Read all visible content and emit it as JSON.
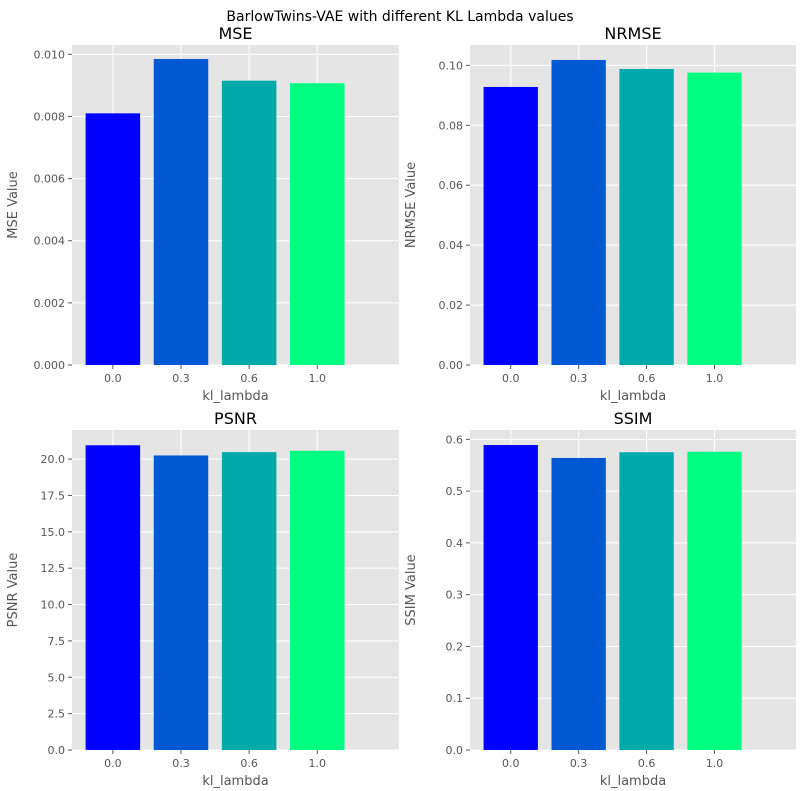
{
  "figure_title": "BarlowTwins-VAE with different KL Lambda values",
  "chart_data": [
    {
      "type": "bar",
      "title": "MSE",
      "xlabel": "kl_lambda",
      "ylabel": "MSE Value",
      "categories": [
        "0.0",
        "0.3",
        "0.6",
        "1.0"
      ],
      "values": [
        0.0081,
        0.00985,
        0.00915,
        0.00907
      ],
      "colors": [
        "#0000ff",
        "#0058d4",
        "#00a9aa",
        "#00ff80"
      ],
      "ylim": [
        0,
        0.0103
      ],
      "yticks": [
        0.0,
        0.002,
        0.004,
        0.006,
        0.008,
        0.01
      ],
      "ytick_labels": [
        "0.000",
        "0.002",
        "0.004",
        "0.006",
        "0.008",
        "0.010"
      ],
      "grid": true
    },
    {
      "type": "bar",
      "title": "NRMSE",
      "xlabel": "kl_lambda",
      "ylabel": "NRMSE Value",
      "categories": [
        "0.0",
        "0.3",
        "0.6",
        "1.0"
      ],
      "values": [
        0.0928,
        0.1018,
        0.0988,
        0.0976
      ],
      "colors": [
        "#0000ff",
        "#0058d4",
        "#00a9aa",
        "#00ff80"
      ],
      "ylim": [
        0,
        0.1068
      ],
      "yticks": [
        0.0,
        0.02,
        0.04,
        0.06,
        0.08,
        0.1
      ],
      "ytick_labels": [
        "0.00",
        "0.02",
        "0.04",
        "0.06",
        "0.08",
        "0.10"
      ],
      "grid": true
    },
    {
      "type": "bar",
      "title": "PSNR",
      "xlabel": "kl_lambda",
      "ylabel": "PSNR Value",
      "categories": [
        "0.0",
        "0.3",
        "0.6",
        "1.0"
      ],
      "values": [
        20.95,
        20.25,
        20.48,
        20.57
      ],
      "colors": [
        "#0000ff",
        "#0058d4",
        "#00a9aa",
        "#00ff80"
      ],
      "ylim": [
        0,
        22.0
      ],
      "yticks": [
        0.0,
        2.5,
        5.0,
        7.5,
        10.0,
        12.5,
        15.0,
        17.5,
        20.0
      ],
      "ytick_labels": [
        "0.0",
        "2.5",
        "5.0",
        "7.5",
        "10.0",
        "12.5",
        "15.0",
        "17.5",
        "20.0"
      ],
      "grid": true
    },
    {
      "type": "bar",
      "title": "SSIM",
      "xlabel": "kl_lambda",
      "ylabel": "SSIM Value",
      "categories": [
        "0.0",
        "0.3",
        "0.6",
        "1.0"
      ],
      "values": [
        0.589,
        0.564,
        0.575,
        0.576
      ],
      "colors": [
        "#0000ff",
        "#0058d4",
        "#00a9aa",
        "#00ff80"
      ],
      "ylim": [
        0,
        0.618
      ],
      "yticks": [
        0.0,
        0.1,
        0.2,
        0.3,
        0.4,
        0.5,
        0.6
      ],
      "ytick_labels": [
        "0.0",
        "0.1",
        "0.2",
        "0.3",
        "0.4",
        "0.5",
        "0.6"
      ],
      "grid": true
    }
  ]
}
